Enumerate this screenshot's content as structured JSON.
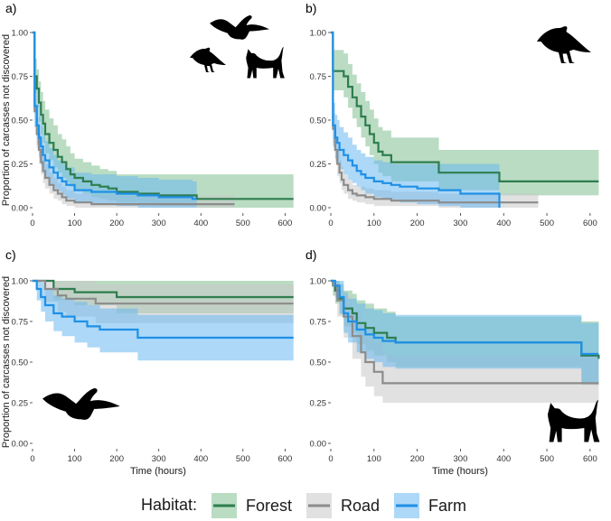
{
  "legend": {
    "title": "Habitat:",
    "items": [
      {
        "label": "Forest",
        "color": "#2e7d4f",
        "fill": "#7fbf8f"
      },
      {
        "label": "Road",
        "color": "#8c8c8c",
        "fill": "#c8c8c8"
      },
      {
        "label": "Farm",
        "color": "#1e90e6",
        "fill": "#6ab8f0"
      }
    ]
  },
  "ylabel": "Proportion of carcasses not discovered",
  "xlabel": "Time (hours)",
  "chart_data": [
    {
      "type": "line",
      "panel": "a)",
      "xlim": [
        0,
        640
      ],
      "ylim": [
        0,
        1
      ],
      "xticks": [
        0,
        100,
        200,
        300,
        400,
        500,
        600
      ],
      "yticks": [
        0.0,
        0.25,
        0.5,
        0.75,
        1.0
      ],
      "xtick_labels_visible": true,
      "ytick_labels_visible": true,
      "icons": [
        "eagle-icon",
        "crow-icon",
        "cat-icon"
      ],
      "series": [
        {
          "name": "Forest",
          "x": [
            0,
            5,
            10,
            15,
            20,
            25,
            30,
            40,
            50,
            60,
            70,
            80,
            90,
            100,
            120,
            140,
            160,
            180,
            200,
            250,
            300,
            390,
            620
          ],
          "y": [
            1.0,
            0.75,
            0.68,
            0.6,
            0.53,
            0.48,
            0.42,
            0.37,
            0.33,
            0.29,
            0.26,
            0.22,
            0.19,
            0.17,
            0.15,
            0.13,
            0.12,
            0.11,
            0.09,
            0.08,
            0.07,
            0.05,
            0.05
          ],
          "lower": [
            1.0,
            0.65,
            0.57,
            0.49,
            0.42,
            0.37,
            0.31,
            0.27,
            0.23,
            0.2,
            0.17,
            0.14,
            0.12,
            0.1,
            0.08,
            0.06,
            0.05,
            0.04,
            0.03,
            0.02,
            0.01,
            0.0,
            0.0
          ],
          "upper": [
            1.0,
            0.85,
            0.79,
            0.72,
            0.66,
            0.61,
            0.56,
            0.51,
            0.47,
            0.42,
            0.39,
            0.35,
            0.31,
            0.28,
            0.26,
            0.24,
            0.22,
            0.21,
            0.19,
            0.19,
            0.19,
            0.19,
            0.19
          ]
        },
        {
          "name": "Road",
          "x": [
            0,
            5,
            10,
            15,
            20,
            25,
            30,
            40,
            50,
            60,
            70,
            80,
            100,
            140,
            480
          ],
          "y": [
            1.0,
            0.55,
            0.42,
            0.33,
            0.26,
            0.21,
            0.17,
            0.13,
            0.1,
            0.08,
            0.06,
            0.04,
            0.03,
            0.02,
            0.02
          ],
          "lower": [
            1.0,
            0.46,
            0.34,
            0.25,
            0.19,
            0.14,
            0.11,
            0.08,
            0.05,
            0.04,
            0.02,
            0.01,
            0.0,
            0.0,
            0.0
          ],
          "upper": [
            1.0,
            0.64,
            0.51,
            0.42,
            0.35,
            0.29,
            0.25,
            0.2,
            0.17,
            0.14,
            0.12,
            0.1,
            0.08,
            0.07,
            0.07
          ]
        },
        {
          "name": "Farm",
          "x": [
            0,
            5,
            10,
            15,
            20,
            25,
            30,
            40,
            50,
            60,
            70,
            80,
            100,
            140,
            200,
            250,
            300,
            380,
            390
          ],
          "y": [
            1.0,
            0.58,
            0.47,
            0.4,
            0.35,
            0.3,
            0.27,
            0.23,
            0.2,
            0.17,
            0.15,
            0.13,
            0.1,
            0.09,
            0.08,
            0.07,
            0.06,
            0.05,
            0.05
          ],
          "lower": [
            1.0,
            0.46,
            0.36,
            0.29,
            0.24,
            0.2,
            0.17,
            0.13,
            0.11,
            0.09,
            0.07,
            0.05,
            0.03,
            0.02,
            0.01,
            0.0,
            0.0,
            0.0,
            0.0
          ],
          "upper": [
            1.0,
            0.7,
            0.59,
            0.52,
            0.47,
            0.42,
            0.38,
            0.34,
            0.3,
            0.27,
            0.25,
            0.23,
            0.2,
            0.19,
            0.18,
            0.17,
            0.16,
            0.15,
            0.15
          ]
        }
      ]
    },
    {
      "type": "line",
      "panel": "b)",
      "xlim": [
        0,
        640
      ],
      "ylim": [
        0,
        1
      ],
      "xticks": [
        0,
        100,
        200,
        300,
        400,
        500,
        600
      ],
      "yticks": [
        0.0,
        0.25,
        0.5,
        0.75,
        1.0
      ],
      "xtick_labels_visible": true,
      "ytick_labels_visible": true,
      "icons": [
        "crow-icon"
      ],
      "series": [
        {
          "name": "Forest",
          "x": [
            0,
            5,
            30,
            40,
            50,
            60,
            70,
            80,
            90,
            100,
            110,
            120,
            140,
            250,
            390,
            620
          ],
          "y": [
            1.0,
            0.78,
            0.75,
            0.69,
            0.63,
            0.58,
            0.52,
            0.47,
            0.42,
            0.37,
            0.32,
            0.3,
            0.26,
            0.2,
            0.15,
            0.15
          ],
          "lower": [
            1.0,
            0.67,
            0.63,
            0.57,
            0.51,
            0.46,
            0.4,
            0.35,
            0.3,
            0.25,
            0.2,
            0.18,
            0.15,
            0.1,
            0.07,
            0.07
          ],
          "upper": [
            1.0,
            0.9,
            0.88,
            0.82,
            0.76,
            0.71,
            0.66,
            0.61,
            0.56,
            0.51,
            0.46,
            0.44,
            0.4,
            0.33,
            0.33,
            0.33
          ]
        },
        {
          "name": "Road",
          "x": [
            0,
            5,
            10,
            15,
            20,
            25,
            30,
            40,
            50,
            60,
            80,
            100,
            140,
            250,
            480
          ],
          "y": [
            1.0,
            0.45,
            0.33,
            0.25,
            0.2,
            0.16,
            0.13,
            0.1,
            0.08,
            0.07,
            0.06,
            0.05,
            0.04,
            0.03,
            0.03
          ],
          "lower": [
            1.0,
            0.37,
            0.26,
            0.18,
            0.14,
            0.1,
            0.08,
            0.05,
            0.04,
            0.03,
            0.02,
            0.01,
            0.01,
            0.0,
            0.0
          ],
          "upper": [
            1.0,
            0.54,
            0.41,
            0.33,
            0.27,
            0.23,
            0.19,
            0.16,
            0.13,
            0.12,
            0.11,
            0.1,
            0.09,
            0.08,
            0.08
          ]
        },
        {
          "name": "Farm",
          "x": [
            0,
            5,
            10,
            15,
            20,
            30,
            40,
            50,
            60,
            70,
            80,
            100,
            120,
            140,
            160,
            200,
            250,
            300,
            390
          ],
          "y": [
            1.0,
            0.47,
            0.4,
            0.37,
            0.33,
            0.3,
            0.27,
            0.24,
            0.21,
            0.19,
            0.17,
            0.15,
            0.14,
            0.13,
            0.12,
            0.11,
            0.1,
            0.08,
            0.0
          ],
          "lower": [
            1.0,
            0.35,
            0.28,
            0.25,
            0.22,
            0.19,
            0.16,
            0.14,
            0.12,
            0.1,
            0.08,
            0.06,
            0.05,
            0.04,
            0.03,
            0.02,
            0.01,
            0.0,
            0.0
          ],
          "upper": [
            1.0,
            0.6,
            0.53,
            0.5,
            0.46,
            0.43,
            0.4,
            0.36,
            0.33,
            0.31,
            0.29,
            0.27,
            0.26,
            0.25,
            0.25,
            0.25,
            0.25,
            0.25,
            0.25
          ]
        }
      ]
    },
    {
      "type": "line",
      "panel": "c)",
      "xlim": [
        0,
        640
      ],
      "ylim": [
        0,
        1
      ],
      "xticks": [
        0,
        100,
        200,
        300,
        400,
        500,
        600
      ],
      "yticks": [
        0.0,
        0.25,
        0.5,
        0.75,
        1.0
      ],
      "xtick_labels_visible": true,
      "ytick_labels_visible": true,
      "icons": [
        "eagle-icon"
      ],
      "series": [
        {
          "name": "Forest",
          "x": [
            0,
            50,
            100,
            200,
            620
          ],
          "y": [
            1.0,
            0.95,
            0.93,
            0.9,
            0.9
          ],
          "lower": [
            1.0,
            0.88,
            0.85,
            0.8,
            0.8
          ],
          "upper": [
            1.0,
            1.0,
            1.0,
            1.0,
            1.0
          ]
        },
        {
          "name": "Road",
          "x": [
            0,
            30,
            60,
            80,
            150,
            620
          ],
          "y": [
            1.0,
            0.95,
            0.91,
            0.89,
            0.86,
            0.86
          ],
          "lower": [
            1.0,
            0.87,
            0.81,
            0.78,
            0.74,
            0.74
          ],
          "upper": [
            1.0,
            1.0,
            1.0,
            1.0,
            0.98,
            0.98
          ]
        },
        {
          "name": "Farm",
          "x": [
            0,
            10,
            20,
            30,
            50,
            70,
            100,
            130,
            160,
            250,
            620
          ],
          "y": [
            1.0,
            0.95,
            0.9,
            0.85,
            0.8,
            0.78,
            0.75,
            0.72,
            0.7,
            0.65,
            0.65
          ],
          "lower": [
            1.0,
            0.88,
            0.81,
            0.75,
            0.69,
            0.66,
            0.62,
            0.59,
            0.56,
            0.51,
            0.51
          ],
          "upper": [
            1.0,
            1.0,
            0.99,
            0.95,
            0.91,
            0.89,
            0.87,
            0.85,
            0.83,
            0.79,
            0.79
          ]
        }
      ]
    },
    {
      "type": "line",
      "panel": "d)",
      "xlim": [
        0,
        640
      ],
      "ylim": [
        0,
        1
      ],
      "xticks": [
        0,
        100,
        200,
        300,
        400,
        500,
        600
      ],
      "yticks": [
        0.0,
        0.25,
        0.5,
        0.75,
        1.0
      ],
      "xtick_labels_visible": true,
      "ytick_labels_visible": true,
      "icons": [
        "cat-icon"
      ],
      "series": [
        {
          "name": "Forest",
          "x": [
            0,
            5,
            10,
            20,
            30,
            50,
            60,
            80,
            100,
            130,
            150,
            200,
            580,
            620
          ],
          "y": [
            1.0,
            0.97,
            0.94,
            0.89,
            0.83,
            0.8,
            0.74,
            0.71,
            0.68,
            0.65,
            0.62,
            0.62,
            0.54,
            0.52
          ],
          "lower": [
            1.0,
            0.91,
            0.86,
            0.79,
            0.72,
            0.68,
            0.61,
            0.57,
            0.54,
            0.5,
            0.47,
            0.47,
            0.36,
            0.33
          ],
          "upper": [
            1.0,
            1.0,
            1.0,
            0.98,
            0.94,
            0.92,
            0.88,
            0.86,
            0.83,
            0.81,
            0.78,
            0.78,
            0.75,
            0.74
          ]
        },
        {
          "name": "Road",
          "x": [
            0,
            5,
            15,
            30,
            50,
            70,
            80,
            100,
            120,
            620
          ],
          "y": [
            1.0,
            0.97,
            0.88,
            0.78,
            0.66,
            0.56,
            0.5,
            0.44,
            0.37,
            0.37
          ],
          "lower": [
            1.0,
            0.91,
            0.78,
            0.65,
            0.52,
            0.41,
            0.35,
            0.29,
            0.25,
            0.25
          ],
          "upper": [
            1.0,
            1.0,
            0.98,
            0.91,
            0.82,
            0.73,
            0.68,
            0.62,
            0.54,
            0.54
          ]
        },
        {
          "name": "Farm",
          "x": [
            0,
            10,
            20,
            30,
            40,
            60,
            80,
            100,
            120,
            150,
            580,
            620
          ],
          "y": [
            1.0,
            0.97,
            0.9,
            0.8,
            0.75,
            0.7,
            0.67,
            0.65,
            0.63,
            0.62,
            0.55,
            0.55
          ],
          "lower": [
            1.0,
            0.9,
            0.8,
            0.68,
            0.62,
            0.56,
            0.52,
            0.5,
            0.47,
            0.46,
            0.37,
            0.37
          ],
          "upper": [
            1.0,
            1.0,
            1.0,
            0.93,
            0.89,
            0.86,
            0.83,
            0.82,
            0.8,
            0.79,
            0.74,
            0.74
          ]
        }
      ]
    }
  ]
}
